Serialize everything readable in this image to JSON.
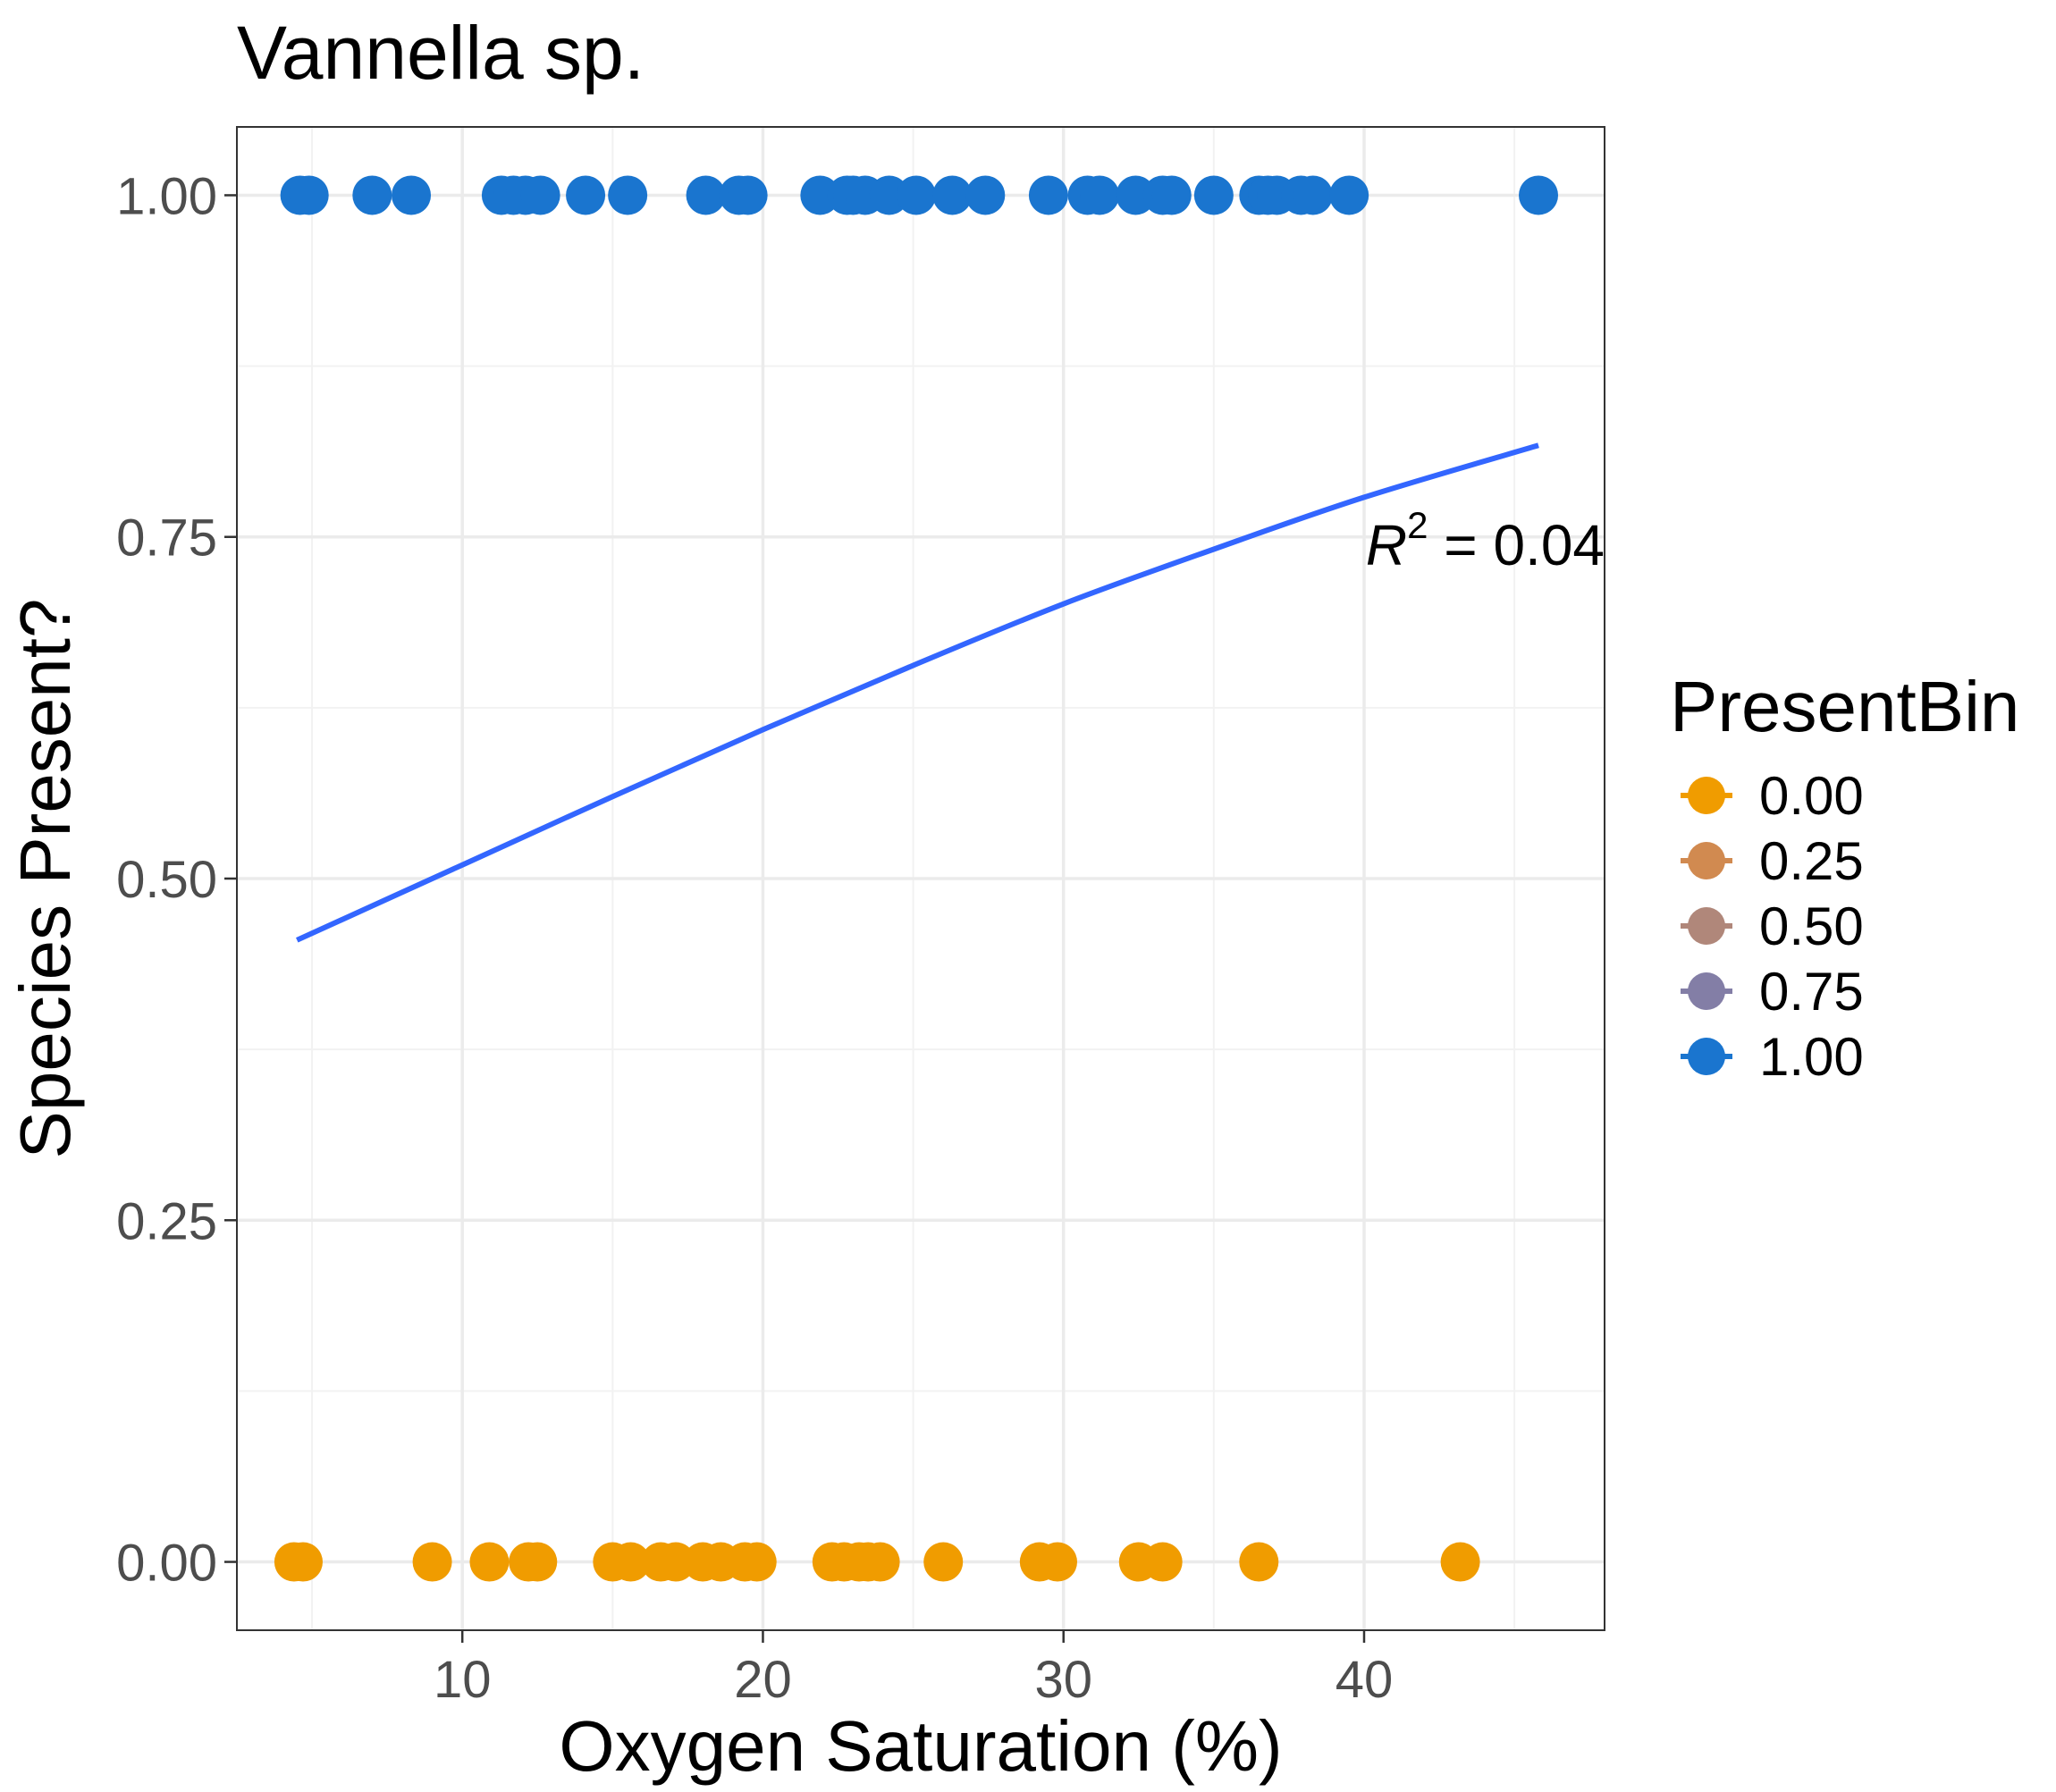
{
  "chart_data": {
    "type": "scatter",
    "title": "Vannella sp.",
    "xlabel": "Oxygen Saturation (%)",
    "ylabel": "Species Present?",
    "xlim": [
      2.5,
      48
    ],
    "ylim": [
      -0.05,
      1.05
    ],
    "x_ticks": [
      10,
      20,
      30,
      40
    ],
    "x_tick_labels": [
      "10",
      "20",
      "30",
      "40"
    ],
    "y_ticks": [
      0,
      0.25,
      0.5,
      0.75,
      1.0
    ],
    "y_tick_labels": [
      "0.00",
      "0.25",
      "0.50",
      "0.75",
      "1.00"
    ],
    "grid": true,
    "legend": {
      "title": "PresentBin",
      "placement": "right",
      "entries": [
        {
          "label": "0.00",
          "color": "#F09C00"
        },
        {
          "label": "0.25",
          "color": "#D18A50"
        },
        {
          "label": "0.50",
          "color": "#B0877A"
        },
        {
          "label": "0.75",
          "color": "#837EA6"
        },
        {
          "label": "1.00",
          "color": "#1A75CF"
        }
      ]
    },
    "series": [
      {
        "presentbin": 1.0,
        "color": "#1A75CF",
        "x": [
          4.6,
          4.9,
          7.0,
          8.3,
          11.3,
          11.7,
          12.1,
          12.6,
          14.1,
          15.5,
          18.1,
          19.2,
          19.5,
          21.9,
          22.8,
          23.0,
          23.4,
          24.2,
          25.1,
          26.3,
          27.4,
          29.5,
          30.8,
          31.2,
          32.4,
          33.3,
          33.6,
          35.0,
          36.5,
          36.8,
          37.1,
          37.9,
          38.3,
          39.5,
          45.8
        ],
        "y": [
          1,
          1,
          1,
          1,
          1,
          1,
          1,
          1,
          1,
          1,
          1,
          1,
          1,
          1,
          1,
          1,
          1,
          1,
          1,
          1,
          1,
          1,
          1,
          1,
          1,
          1,
          1,
          1,
          1,
          1,
          1,
          1,
          1,
          1,
          1
        ]
      },
      {
        "presentbin": 0.0,
        "color": "#F09C00",
        "x": [
          4.4,
          4.7,
          9.0,
          10.9,
          12.2,
          12.5,
          15.0,
          15.6,
          16.6,
          17.1,
          18.0,
          18.6,
          19.4,
          19.8,
          22.3,
          22.7,
          23.2,
          23.5,
          23.9,
          26.0,
          29.2,
          29.8,
          32.5,
          33.3,
          36.5,
          43.2
        ],
        "y": [
          0,
          0,
          0,
          0,
          0,
          0,
          0,
          0,
          0,
          0,
          0,
          0,
          0,
          0,
          0,
          0,
          0,
          0,
          0,
          0,
          0,
          0,
          0,
          0,
          0,
          0
        ]
      }
    ],
    "fit_line": {
      "type": "logistic",
      "color": "#3366FF",
      "x": [
        4.5,
        10,
        15,
        20,
        25,
        30,
        35,
        40,
        45.8
      ],
      "y": [
        0.455,
        0.51,
        0.56,
        0.609,
        0.656,
        0.701,
        0.741,
        0.779,
        0.817
      ]
    },
    "annotation": {
      "r_label": "R",
      "sup": "2",
      "text": " = 0.04"
    }
  }
}
